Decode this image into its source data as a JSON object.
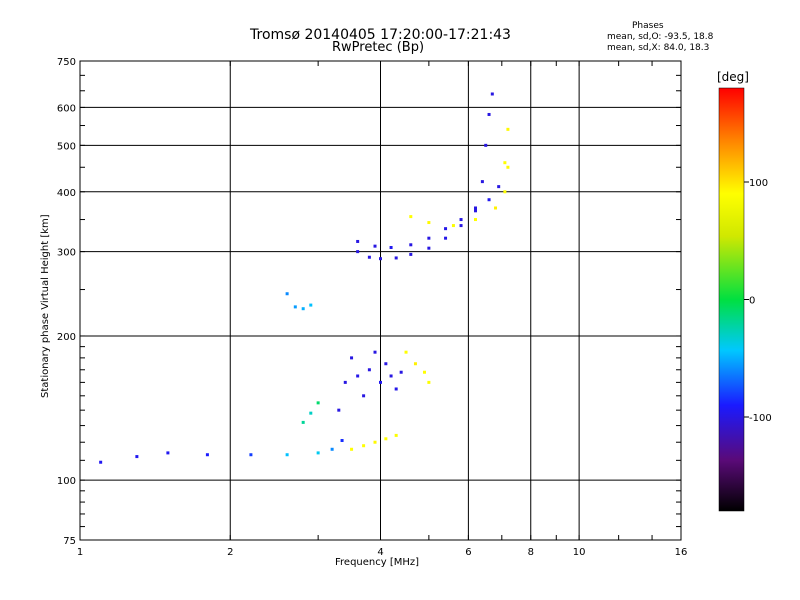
{
  "header": {
    "title_line1": "Tromsø 20140405 17:20:00-17:21:43",
    "title_line2": "RwPretec (Bp)",
    "phases_title": "Phases",
    "phases_line1": "mean, sd,O: -93.5, 18.8",
    "phases_line2": "mean, sd,X: 84.0, 18.3"
  },
  "colorbar": {
    "unit": "[deg]",
    "tick_labels": [
      "100",
      "0",
      "-100"
    ],
    "tick_values": [
      100,
      0,
      -100
    ],
    "range": [
      -180,
      180
    ]
  },
  "chart_data": {
    "type": "scatter",
    "xlabel": "Frequency [MHz]",
    "ylabel": "Stationary phase Virtual Height [km]",
    "x_scale": "log",
    "y_scale": "log",
    "xlim": [
      1,
      16
    ],
    "ylim": [
      75,
      750
    ],
    "x_ticks": [
      1,
      2,
      4,
      6,
      8,
      10,
      16
    ],
    "x_tick_labels": [
      "1",
      "2",
      "4",
      "6",
      "8",
      "10",
      "16"
    ],
    "y_ticks": [
      75,
      100,
      200,
      300,
      400,
      500,
      600,
      750
    ],
    "y_tick_labels": [
      "75",
      "100",
      "200",
      "300",
      "400",
      "500",
      "600",
      "750"
    ],
    "grid": true,
    "series": [
      {
        "color_by": "phase_deg",
        "traces": [
          {
            "x": [
              1.1,
              1.3,
              1.5,
              1.8,
              2.2,
              2.6,
              3.0,
              3.2,
              3.35
            ],
            "y": [
              109,
              112,
              114,
              113,
              113,
              113,
              114,
              116,
              121
            ],
            "phase": [
              -95,
              -95,
              -95,
              -90,
              -80,
              -45,
              -40,
              -60,
              -85
            ]
          },
          {
            "x": [
              3.3,
              3.4,
              3.5,
              3.6,
              3.7,
              3.8,
              3.9,
              4.0,
              4.1,
              4.2,
              4.3,
              4.4
            ],
            "y": [
              140,
              160,
              180,
              165,
              150,
              170,
              185,
              160,
              175,
              165,
              155,
              168
            ],
            "phase": [
              -100,
              -100,
              -100,
              -98,
              -100,
              -100,
              -100,
              -95,
              -100,
              -100,
              -98,
              -100
            ]
          },
          {
            "x": [
              3.5,
              3.7,
              3.9,
              4.1,
              4.3
            ],
            "y": [
              116,
              118,
              120,
              122,
              124
            ],
            "phase": [
              90,
              90,
              92,
              90,
              88
            ]
          },
          {
            "x": [
              4.5,
              4.7,
              4.9,
              5.0
            ],
            "y": [
              185,
              175,
              168,
              160
            ],
            "phase": [
              90,
              95,
              90,
              88
            ]
          },
          {
            "x": [
              3.6,
              3.8,
              4.0,
              4.3,
              4.6,
              5.0,
              5.4,
              5.8,
              6.2,
              6.4,
              6.5,
              6.6,
              6.7
            ],
            "y": [
              300,
              292,
              290,
              291,
              296,
              305,
              320,
              340,
              370,
              420,
              500,
              580,
              640
            ],
            "phase": [
              -100,
              -100,
              -100,
              -100,
              -100,
              -100,
              -98,
              -100,
              -100,
              -100,
              -100,
              -100,
              -100
            ]
          },
          {
            "x": [
              3.6,
              3.9,
              4.2,
              4.6,
              5.0,
              5.4,
              5.8,
              6.2,
              6.6,
              6.9,
              7.1,
              7.2
            ],
            "y": [
              315,
              308,
              306,
              310,
              320,
              335,
              350,
              365,
              385,
              410,
              460,
              540
            ],
            "phase": [
              -100,
              -100,
              -95,
              -100,
              -100,
              -98,
              -100,
              -100,
              -95,
              -100,
              90,
              92
            ]
          },
          {
            "x": [
              4.6,
              5.0,
              5.6,
              6.2,
              6.8,
              7.1,
              7.2
            ],
            "y": [
              355,
              345,
              340,
              350,
              370,
              400,
              450
            ],
            "phase": [
              90,
              92,
              88,
              90,
              95,
              90,
              92
            ]
          },
          {
            "x": [
              2.6,
              2.7,
              2.8,
              2.9
            ],
            "y": [
              245,
              230,
              228,
              232
            ],
            "phase": [
              -60,
              -55,
              -50,
              -45
            ]
          },
          {
            "x": [
              2.8,
              2.9,
              3.0
            ],
            "y": [
              132,
              138,
              145
            ],
            "phase": [
              -20,
              -30,
              -10
            ]
          }
        ]
      }
    ]
  }
}
